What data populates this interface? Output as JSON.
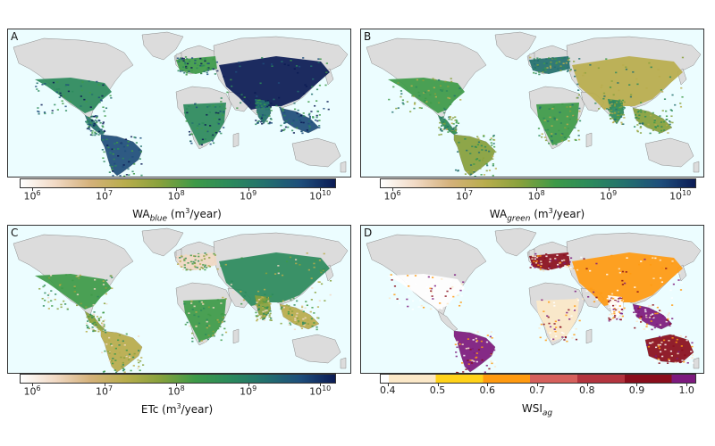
{
  "panels": [
    {
      "letter": "A",
      "colorbar": {
        "type": "log",
        "ticks": [
          {
            "base": "10",
            "exp": "6"
          },
          {
            "base": "10",
            "exp": "7"
          },
          {
            "base": "10",
            "exp": "8"
          },
          {
            "base": "10",
            "exp": "9"
          },
          {
            "base": "10",
            "exp": "10"
          }
        ],
        "label_main": "WA",
        "label_sub": "blue",
        "label_unit_pre": " (m",
        "label_unit_sup": "3",
        "label_unit_post": "/year)",
        "colors": [
          "#ffffff",
          "#f1d9c4",
          "#d4b17a",
          "#b8ad4c",
          "#87a13c",
          "#3d9a48",
          "#2b8a5c",
          "#23706e",
          "#1e4e7b",
          "#0b1b55"
        ]
      },
      "land_style": "blue"
    },
    {
      "letter": "B",
      "colorbar": {
        "type": "log",
        "ticks": [
          {
            "base": "10",
            "exp": "6"
          },
          {
            "base": "10",
            "exp": "7"
          },
          {
            "base": "10",
            "exp": "8"
          },
          {
            "base": "10",
            "exp": "9"
          },
          {
            "base": "10",
            "exp": "10"
          }
        ],
        "label_main": "WA",
        "label_sub": "green",
        "label_unit_pre": " (m",
        "label_unit_sup": "3",
        "label_unit_post": "/year)",
        "colors": [
          "#ffffff",
          "#f1d9c4",
          "#d4b17a",
          "#b8ad4c",
          "#87a13c",
          "#3d9a48",
          "#2b8a5c",
          "#23706e",
          "#1e4e7b",
          "#0b1b55"
        ]
      },
      "land_style": "green"
    },
    {
      "letter": "C",
      "colorbar": {
        "type": "log",
        "ticks": [
          {
            "base": "10",
            "exp": "6"
          },
          {
            "base": "10",
            "exp": "7"
          },
          {
            "base": "10",
            "exp": "8"
          },
          {
            "base": "10",
            "exp": "9"
          },
          {
            "base": "10",
            "exp": "10"
          }
        ],
        "label_main": "ETc",
        "label_sub": "",
        "label_unit_pre": " (m",
        "label_unit_sup": "3",
        "label_unit_post": "/year)",
        "colors": [
          "#ffffff",
          "#f1d9c4",
          "#d4b17a",
          "#b8ad4c",
          "#87a13c",
          "#3d9a48",
          "#2b8a5c",
          "#23706e",
          "#1e4e7b",
          "#0b1b55"
        ]
      },
      "land_style": "etc"
    },
    {
      "letter": "D",
      "colorbar": {
        "type": "discrete",
        "ticks": [
          {
            "label": "0.4"
          },
          {
            "label": "0.5"
          },
          {
            "label": "0.6"
          },
          {
            "label": "0.7"
          },
          {
            "label": "0.8"
          },
          {
            "label": "0.9"
          },
          {
            "label": "1.0"
          }
        ],
        "label_main": "WSI",
        "label_sub": "ag",
        "label_unit_pre": "",
        "label_unit_sup": "",
        "label_unit_post": "",
        "colors": [
          "#fbe8c8",
          "#ffd21a",
          "#ff9a10",
          "#d6605c",
          "#b3343e",
          "#8a0e1c",
          "#7d1a7e"
        ],
        "end_color": "#ffffff"
      },
      "land_style": "wsi"
    }
  ],
  "map_colors": {
    "ocean": "#ecfdff",
    "land_gray": "#dcdcdc",
    "border": "#8c8c8c"
  }
}
